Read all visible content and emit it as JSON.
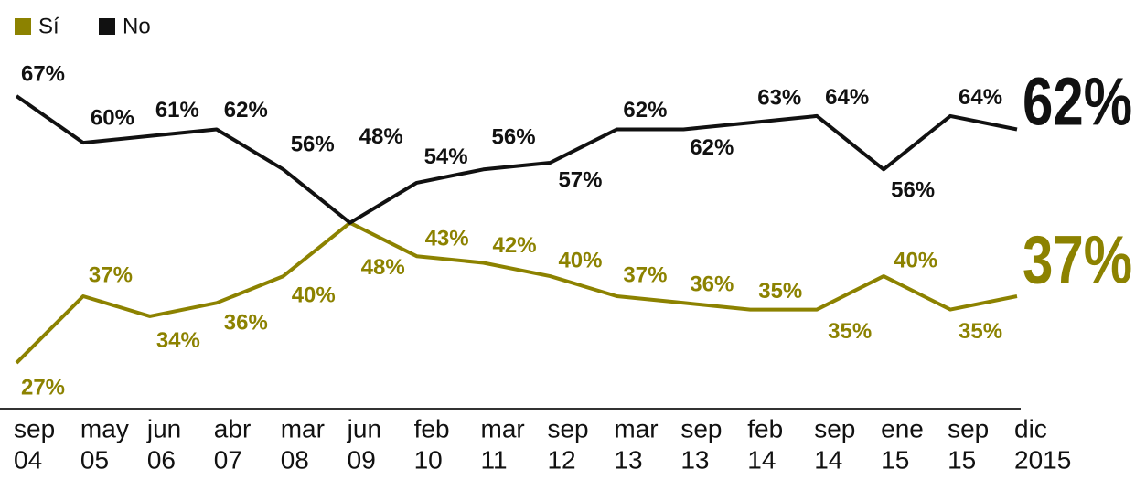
{
  "chart_data": {
    "type": "line",
    "categories": [
      [
        "sep",
        "04"
      ],
      [
        "may",
        "05"
      ],
      [
        "jun",
        "06"
      ],
      [
        "abr",
        "07"
      ],
      [
        "mar",
        "08"
      ],
      [
        "jun",
        "09"
      ],
      [
        "feb",
        "10"
      ],
      [
        "mar",
        "11"
      ],
      [
        "sep",
        "12"
      ],
      [
        "mar",
        "13"
      ],
      [
        "sep",
        "13"
      ],
      [
        "feb",
        "14"
      ],
      [
        "sep",
        "14"
      ],
      [
        "ene",
        "15"
      ],
      [
        "sep",
        "15"
      ],
      [
        "dic",
        "2015"
      ]
    ],
    "series": [
      {
        "name": "Sí",
        "color": "#8c8200",
        "values": [
          27,
          37,
          34,
          36,
          40,
          48,
          43,
          42,
          40,
          37,
          36,
          35,
          35,
          40,
          35,
          37
        ],
        "value_labels": [
          "27%",
          "37%",
          "34%",
          "36%",
          "40%",
          "48%",
          "43%",
          "42%",
          "40%",
          "37%",
          "36%",
          "35%",
          "35%",
          "40%",
          "35%",
          "37%"
        ]
      },
      {
        "name": "No",
        "color": "#111111",
        "values": [
          67,
          60,
          61,
          62,
          56,
          48,
          54,
          56,
          57,
          62,
          62,
          63,
          64,
          56,
          64,
          62
        ],
        "value_labels": [
          "67%",
          "60%",
          "61%",
          "62%",
          "56%",
          "48%",
          "54%",
          "56%",
          "57%",
          "62%",
          "62%",
          "63%",
          "64%",
          "56%",
          "64%",
          "62%"
        ]
      }
    ]
  }
}
